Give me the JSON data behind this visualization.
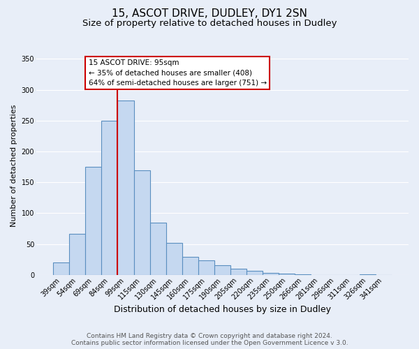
{
  "title": "15, ASCOT DRIVE, DUDLEY, DY1 2SN",
  "subtitle": "Size of property relative to detached houses in Dudley",
  "xlabel": "Distribution of detached houses by size in Dudley",
  "ylabel": "Number of detached properties",
  "categories": [
    "39sqm",
    "54sqm",
    "69sqm",
    "84sqm",
    "99sqm",
    "115sqm",
    "130sqm",
    "145sqm",
    "160sqm",
    "175sqm",
    "190sqm",
    "205sqm",
    "220sqm",
    "235sqm",
    "250sqm",
    "266sqm",
    "281sqm",
    "296sqm",
    "311sqm",
    "326sqm",
    "341sqm"
  ],
  "values": [
    20,
    66,
    175,
    250,
    283,
    170,
    85,
    52,
    29,
    24,
    15,
    10,
    6,
    3,
    2,
    1,
    0,
    0,
    0,
    1,
    0
  ],
  "bar_color": "#c5d8f0",
  "bar_edge_color": "#5a8fc0",
  "bar_linewidth": 0.8,
  "vline_x_index": 4,
  "vline_color": "#cc0000",
  "annotation_line1": "15 ASCOT DRIVE: 95sqm",
  "annotation_line2": "← 35% of detached houses are smaller (408)",
  "annotation_line3": "64% of semi-detached houses are larger (751) →",
  "annotation_box_color": "#cc0000",
  "annotation_bg": "#ffffff",
  "ylim": [
    0,
    355
  ],
  "yticks": [
    0,
    50,
    100,
    150,
    200,
    250,
    300,
    350
  ],
  "footer1": "Contains HM Land Registry data © Crown copyright and database right 2024.",
  "footer2": "Contains public sector information licensed under the Open Government Licence v 3.0.",
  "background_color": "#e8eef8",
  "grid_color": "#ffffff",
  "title_fontsize": 11,
  "subtitle_fontsize": 9.5,
  "xlabel_fontsize": 9,
  "ylabel_fontsize": 8,
  "tick_fontsize": 7,
  "annotation_fontsize": 7.5,
  "footer_fontsize": 6.5
}
